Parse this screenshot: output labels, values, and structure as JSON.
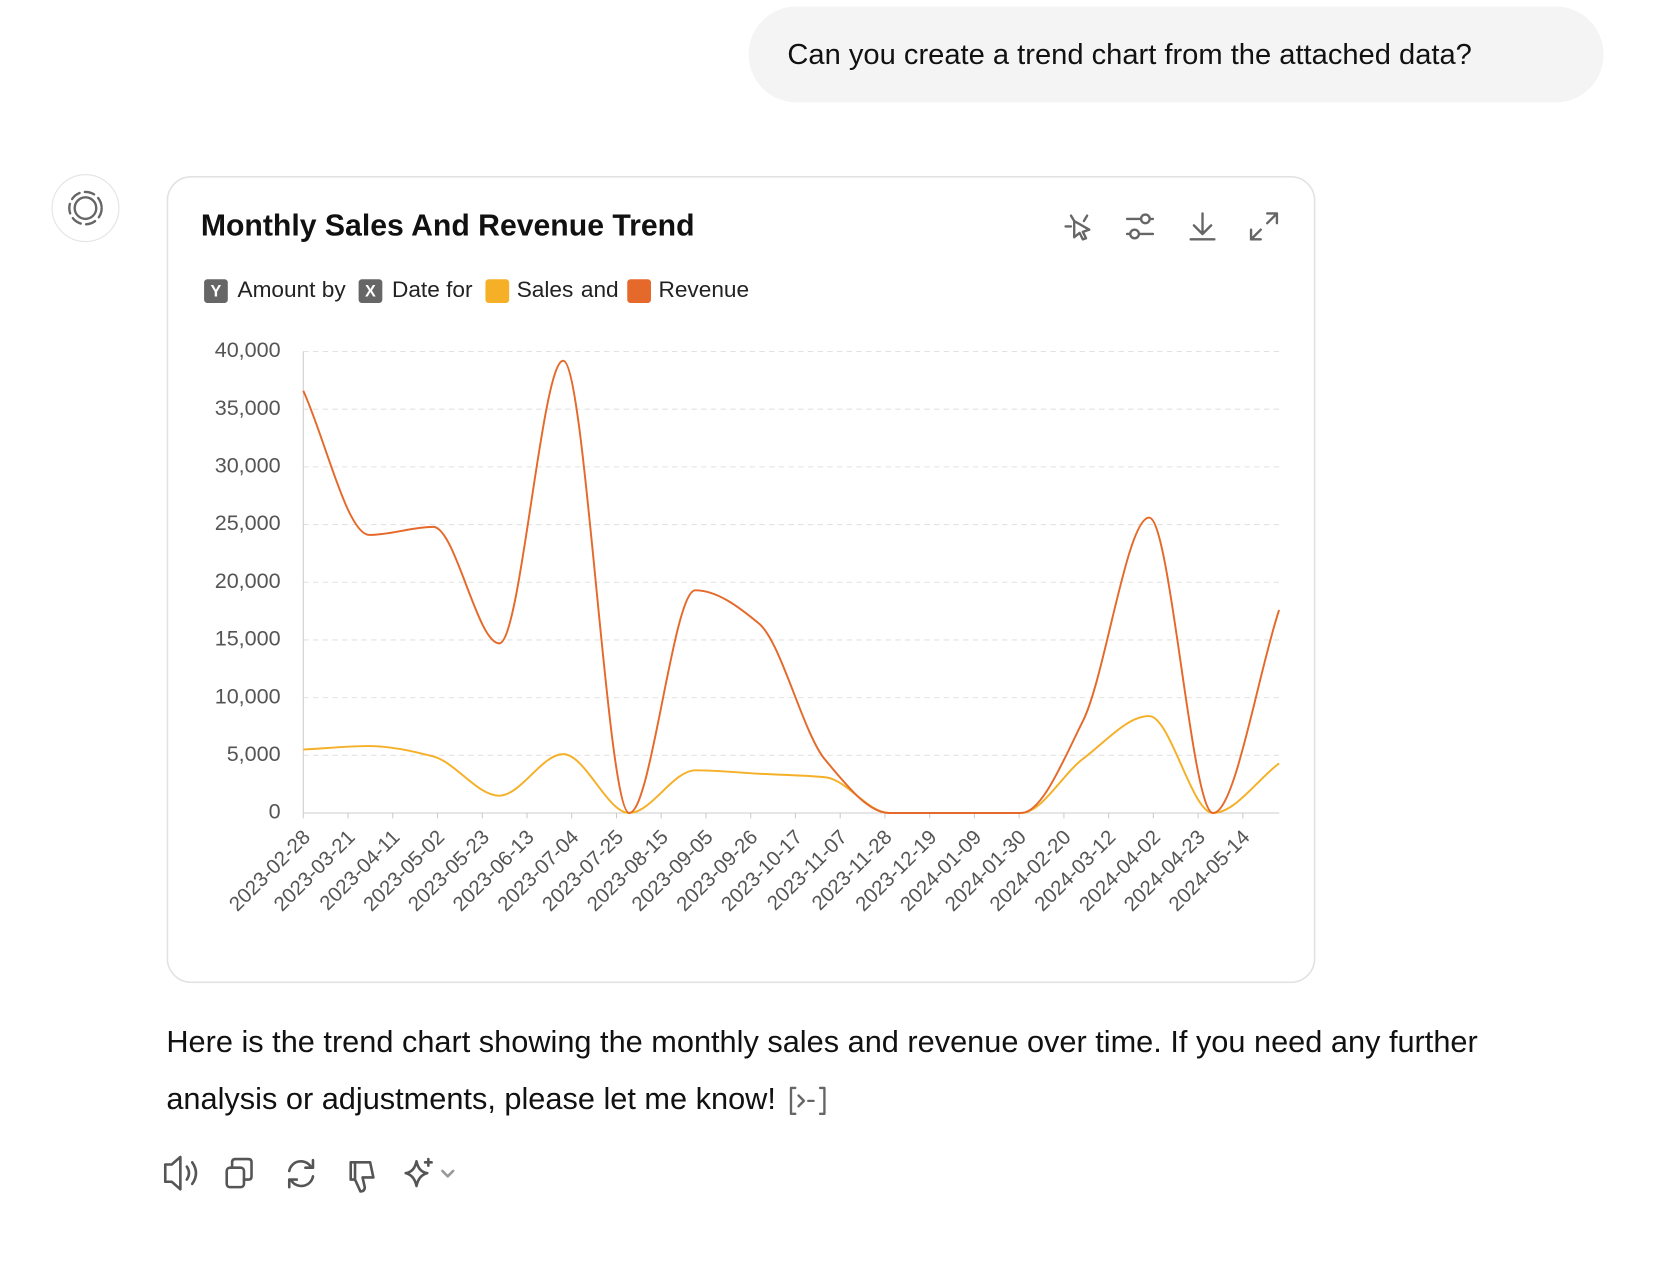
{
  "user_message": "Can you create a trend chart from the attached data?",
  "chart_data": {
    "type": "line",
    "title": "Monthly Sales And Revenue Trend",
    "legend_badges": [
      {
        "badge": "Y",
        "text": "Amount by"
      },
      {
        "badge": "X",
        "text": "Date for"
      }
    ],
    "legend_joiner": "and",
    "x": [
      "2023-02-28",
      "2023-03-31",
      "2023-04-30",
      "2023-05-31",
      "2023-06-30",
      "2023-07-31",
      "2023-08-31",
      "2023-09-30",
      "2023-10-31",
      "2023-11-30",
      "2023-12-31",
      "2024-01-31",
      "2024-02-29",
      "2024-03-31",
      "2024-04-30",
      "2024-05-31"
    ],
    "series": [
      {
        "name": "Sales",
        "color": "#f5b027",
        "values": [
          5500,
          5800,
          4900,
          1500,
          5100,
          0,
          3700,
          3400,
          3100,
          0,
          0,
          0,
          4700,
          8400,
          0,
          4300
        ]
      },
      {
        "name": "Revenue",
        "color": "#e5692a",
        "values": [
          36600,
          24100,
          24800,
          14700,
          39200,
          0,
          19300,
          16400,
          4600,
          0,
          0,
          0,
          8000,
          25600,
          0,
          17600
        ]
      }
    ],
    "xlim": [
      "2023-02-28",
      "2024-05-31"
    ],
    "xticks": [
      "2023-02-28",
      "2023-03-21",
      "2023-04-11",
      "2023-05-02",
      "2023-05-23",
      "2023-06-13",
      "2023-07-04",
      "2023-07-25",
      "2023-08-15",
      "2023-09-05",
      "2023-09-26",
      "2023-10-17",
      "2023-11-07",
      "2023-11-28",
      "2023-12-19",
      "2024-01-09",
      "2024-01-30",
      "2024-02-20",
      "2024-03-12",
      "2024-04-02",
      "2024-04-23",
      "2024-05-14"
    ],
    "ylim": [
      0,
      40000
    ],
    "yticks": [
      0,
      {
        "value": 5000,
        "label": "5,000"
      },
      {
        "value": 10000,
        "label": "10,000"
      },
      {
        "value": 15000,
        "label": "15,000"
      },
      {
        "value": 20000,
        "label": "20,000"
      },
      {
        "value": 25000,
        "label": "25,000"
      },
      {
        "value": 30000,
        "label": "30,000"
      },
      {
        "value": 35000,
        "label": "35,000"
      },
      {
        "value": 40000,
        "label": "40,000"
      }
    ],
    "grid": true
  },
  "response": [
    "Here is the trend chart showing the monthly sales and revenue over time. If you need any further",
    "analysis or adjustments, please let me know!"
  ]
}
